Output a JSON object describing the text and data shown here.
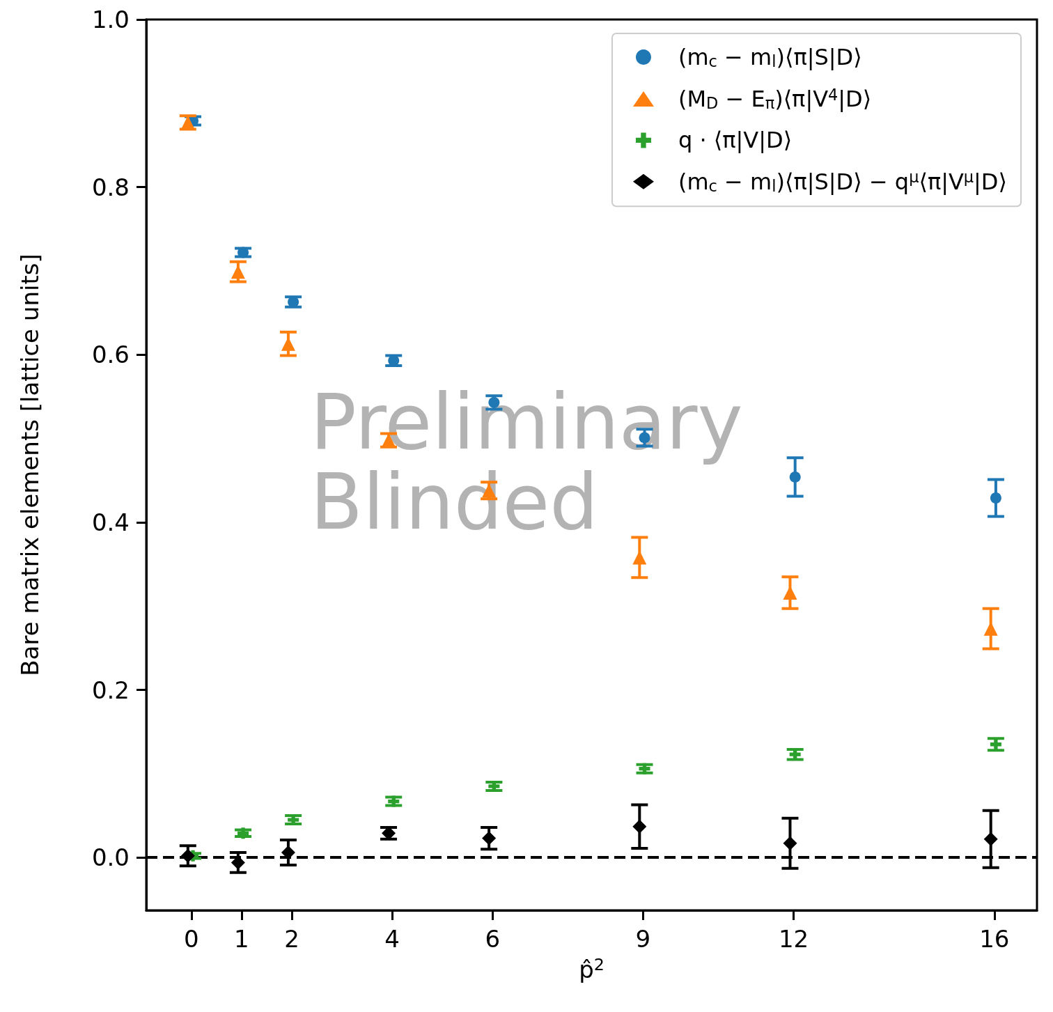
{
  "chart_data": {
    "type": "scatter",
    "xlabel": "p̂$^{2}$",
    "ylabel": "Bare matrix elements [lattice units]",
    "xlim": [
      -0.9,
      16.85
    ],
    "xticks": [
      0,
      1,
      2,
      4,
      6,
      9,
      12,
      16
    ],
    "ylim": [
      -0.063,
      1.0
    ],
    "yticks": [
      {
        "value": 0,
        "label": "0.0"
      },
      {
        "value": 0.2,
        "label": "0.2"
      },
      {
        "value": 0.4,
        "label": "0.4"
      },
      {
        "value": 0.6,
        "label": "0.6"
      },
      {
        "value": 0.8,
        "label": "0.8"
      },
      {
        "value": 1,
        "label": "1.0"
      }
    ],
    "grid": false,
    "legend": "top right",
    "series": [
      {
        "name": "(m$_{c}$ − m$_{l}$)⟨π|S|D⟩",
        "color": "#1f77b4",
        "marker": "circle",
        "x": [
          0.03,
          1.03,
          2.03,
          4.03,
          6.03,
          9.03,
          12.03,
          16.03
        ],
        "values": [
          0.879,
          0.722,
          0.663,
          0.593,
          0.543,
          0.501,
          0.454,
          0.429
        ],
        "errors": [
          0.005,
          0.005,
          0.006,
          0.006,
          0.008,
          0.01,
          0.023,
          0.022
        ]
      },
      {
        "name": "(M$_{D}$ − E$_{π}$)⟨π|V$^{4}$|D⟩",
        "color": "#ff7f0e",
        "marker": "triangle",
        "x": [
          -0.07,
          0.93,
          1.93,
          3.93,
          5.93,
          8.93,
          11.93,
          15.93
        ],
        "values": [
          0.877,
          0.699,
          0.613,
          0.498,
          0.438,
          0.358,
          0.316,
          0.273
        ],
        "errors": [
          0.008,
          0.012,
          0.014,
          0.008,
          0.01,
          0.024,
          0.019,
          0.024
        ]
      },
      {
        "name": "q · ⟨π|V|D⟩",
        "color": "#2ca02c",
        "marker": "cross",
        "x": [
          0.03,
          1.03,
          2.03,
          4.03,
          6.03,
          9.03,
          12.03,
          16.03
        ],
        "values": [
          0.002,
          0.029,
          0.045,
          0.067,
          0.085,
          0.106,
          0.123,
          0.135
        ],
        "errors": [
          0.003,
          0.004,
          0.005,
          0.005,
          0.005,
          0.005,
          0.006,
          0.007
        ]
      },
      {
        "name": "(m$_{c}$ − m$_{l}$)⟨π|S|D⟩ − q$^{μ}$⟨π|V$^{μ}$|D⟩",
        "color": "#000000",
        "marker": "diamond",
        "x": [
          -0.07,
          0.93,
          1.93,
          3.93,
          5.93,
          8.93,
          11.93,
          15.93
        ],
        "values": [
          0.002,
          -0.006,
          0.006,
          0.029,
          0.023,
          0.037,
          0.017,
          0.022
        ],
        "errors": [
          0.012,
          0.012,
          0.015,
          0.007,
          0.013,
          0.026,
          0.03,
          0.034
        ]
      }
    ],
    "ref_lines": [
      {
        "axis": "y",
        "value": 0,
        "color": "#000000",
        "line_style": "dashed"
      }
    ],
    "annotations": [
      "Preliminary\nBlinded"
    ]
  }
}
